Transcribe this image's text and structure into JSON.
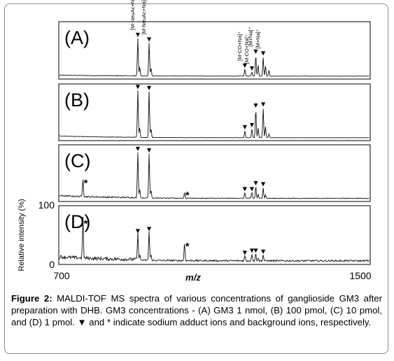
{
  "figure": {
    "caption_label": "Figure 2:",
    "caption_text": " MALDI-TOF MS spectra of various concentrations of ganglioside GM3 after preparation with DHB. GM3 concentrations - (A) GM3 1 nmol, (B) 100 pmol, (C) 10 pmol, and (D) 1 pmol. ▼ and * indicate sodium adduct ions and background ions, respectively."
  },
  "chart_data": {
    "type": "line",
    "xlabel": "m/z",
    "ylabel": "Relative intensity (%)",
    "xlim": [
      700,
      1500
    ],
    "x_ticks": [
      "700",
      "1500"
    ],
    "ylim": [
      0,
      100
    ],
    "y_ticks": [
      "0",
      "100"
    ],
    "grid": false,
    "legend": "none",
    "colors": {
      "trace": "#111111",
      "frame": "#000000"
    },
    "marker_symbol": "▼",
    "background_symbol": "*",
    "panels": [
      {
        "label": "(A)",
        "peaks": [
          {
            "mz": 903,
            "height": 75,
            "marked": true
          },
          {
            "mz": 908,
            "height": 18
          },
          {
            "mz": 932,
            "height": 66,
            "marked": true
          },
          {
            "mz": 937,
            "height": 16
          },
          {
            "mz": 1178,
            "height": 14,
            "marked": true
          },
          {
            "mz": 1196,
            "height": 8,
            "marked": true
          },
          {
            "mz": 1206,
            "height": 42,
            "marked": true
          },
          {
            "mz": 1212,
            "height": 22
          },
          {
            "mz": 1225,
            "height": 38,
            "marked": true
          },
          {
            "mz": 1231,
            "height": 20
          },
          {
            "mz": 1240,
            "height": 12
          }
        ],
        "peak_labels": [
          {
            "mz": 903,
            "text": "[M-NeuAc+Na]⁺"
          },
          {
            "mz": 932,
            "text": "[M-NeuAc+Na]⁺"
          },
          {
            "mz": 1178,
            "text": "[M-CO+Na]⁺"
          },
          {
            "mz": 1196,
            "text": "[M-CO+Na]⁺"
          },
          {
            "mz": 1206,
            "text": "[M+Na]⁺"
          },
          {
            "mz": 1225,
            "text": "[M+Na]⁺"
          }
        ]
      },
      {
        "label": "(B)",
        "peaks": [
          {
            "mz": 903,
            "height": 95,
            "marked": true
          },
          {
            "mz": 908,
            "height": 20
          },
          {
            "mz": 932,
            "height": 93,
            "marked": true
          },
          {
            "mz": 937,
            "height": 18
          },
          {
            "mz": 1178,
            "height": 14,
            "marked": true
          },
          {
            "mz": 1196,
            "height": 18,
            "marked": true
          },
          {
            "mz": 1206,
            "height": 58,
            "marked": true
          },
          {
            "mz": 1212,
            "height": 20
          },
          {
            "mz": 1225,
            "height": 60,
            "marked": true
          },
          {
            "mz": 1231,
            "height": 22
          },
          {
            "mz": 1240,
            "height": 8
          }
        ]
      },
      {
        "label": "(C)",
        "peaks": [
          {
            "mz": 762,
            "height": 36,
            "background": true
          },
          {
            "mz": 903,
            "height": 93,
            "marked": true
          },
          {
            "mz": 908,
            "height": 18
          },
          {
            "mz": 932,
            "height": 90,
            "marked": true
          },
          {
            "mz": 937,
            "height": 16
          },
          {
            "mz": 1023,
            "height": 11,
            "background": true
          },
          {
            "mz": 1178,
            "height": 12,
            "marked": true
          },
          {
            "mz": 1196,
            "height": 12,
            "marked": true
          },
          {
            "mz": 1206,
            "height": 24,
            "marked": true
          },
          {
            "mz": 1212,
            "height": 8
          },
          {
            "mz": 1225,
            "height": 22,
            "marked": true
          },
          {
            "mz": 1231,
            "height": 7
          }
        ]
      },
      {
        "label": "(D)",
        "peaks": [
          {
            "mz": 762,
            "height": 78,
            "background": true
          },
          {
            "mz": 903,
            "height": 52,
            "marked": true
          },
          {
            "mz": 908,
            "height": 12
          },
          {
            "mz": 932,
            "height": 56,
            "marked": true
          },
          {
            "mz": 937,
            "height": 10
          },
          {
            "mz": 1023,
            "height": 34,
            "background": true
          },
          {
            "mz": 1178,
            "height": 10,
            "marked": true
          },
          {
            "mz": 1196,
            "height": 14,
            "marked": true
          },
          {
            "mz": 1206,
            "height": 14,
            "marked": true
          },
          {
            "mz": 1212,
            "height": 6
          },
          {
            "mz": 1225,
            "height": 12,
            "marked": true
          }
        ]
      }
    ]
  }
}
